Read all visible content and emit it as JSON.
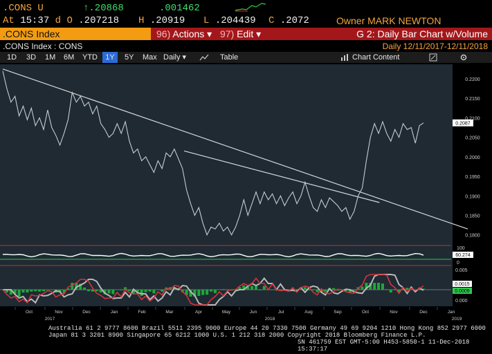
{
  "header": {
    "ticker": ".CONS U",
    "last_arrow": "↑",
    "last": ".20868",
    "change": ".001462",
    "at_label": "At",
    "time": "15:37",
    "d_label": "d",
    "open_label": "O",
    "open": ".207218",
    "high_label": "H",
    "high": ".20919",
    "low_label": "L",
    "low": ".204439",
    "close_label": "C",
    "close": ".2072",
    "owner": "Owner MARK NEWTON"
  },
  "menubar": {
    "index_name": ".CONS Index",
    "actions_num": "96)",
    "actions_label": "Actions ▾",
    "edit_num": "97)",
    "edit_label": "Edit ▾",
    "chart_title": "G 2: Daily Bar Chart w/Volume"
  },
  "subbar": {
    "left": ".CONS Index : CONS",
    "freq": "Daily",
    "range": "12/11/2017-12/11/2018"
  },
  "toolbar": {
    "ranges": [
      "1D",
      "3D",
      "1M",
      "6M",
      "YTD",
      "1Y",
      "5Y",
      "Max"
    ],
    "active_range": "1Y",
    "period": "Daily ▾",
    "table_label": "Table",
    "chart_content_label": "Chart Content"
  },
  "chart_data": {
    "type": "line",
    "ylim": [
      0.178,
      0.223
    ],
    "y_ticks": [
      "0.2200",
      "0.2150",
      "0.2100",
      "0.2050",
      "0.2000",
      "0.1950",
      "0.1900",
      "0.1850",
      "0.1800"
    ],
    "last_value_label": "0.2087",
    "x_months": [
      "Oct",
      "Nov",
      "Dec",
      "Jan",
      "Feb",
      "Mar",
      "Apr",
      "May",
      "Jun",
      "Jul",
      "Aug",
      "Sep",
      "Oct",
      "Nov",
      "Dec",
      "Jan"
    ],
    "x_years": [
      "2017",
      "2018",
      "2019"
    ],
    "series_values": [
      0.222,
      0.2175,
      0.214,
      0.2155,
      0.2105,
      0.213,
      0.2095,
      0.2125,
      0.208,
      0.21,
      0.207,
      0.212,
      0.2075,
      0.2055,
      0.203,
      0.206,
      0.2095,
      0.2165,
      0.214,
      0.2155,
      0.213,
      0.214,
      0.211,
      0.213,
      0.2085,
      0.207,
      0.205,
      0.206,
      0.2085,
      0.206,
      0.209,
      0.204,
      0.201,
      0.202,
      0.199,
      0.2,
      0.198,
      0.196,
      0.199,
      0.197,
      0.201,
      0.2,
      0.202,
      0.1995,
      0.197,
      0.1915,
      0.188,
      0.185,
      0.187,
      0.183,
      0.18,
      0.182,
      0.1815,
      0.183,
      0.181,
      0.182,
      0.18,
      0.182,
      0.185,
      0.189,
      0.185,
      0.188,
      0.191,
      0.188,
      0.191,
      0.189,
      0.1905,
      0.188,
      0.19,
      0.1875,
      0.1895,
      0.191,
      0.188,
      0.19,
      0.1935,
      0.19,
      0.187,
      0.186,
      0.189,
      0.187,
      0.1895,
      0.1885,
      0.1875,
      0.186,
      0.187,
      0.184,
      0.186,
      0.19,
      0.192,
      0.199,
      0.205,
      0.2085,
      0.206,
      0.209,
      0.206,
      0.204,
      0.207,
      0.205,
      0.2085,
      0.207,
      0.2075,
      0.2035,
      0.208,
      0.2087
    ],
    "trendlines": [
      {
        "from": [
          0,
          0.2225
        ],
        "to": [
          1,
          0.1815
        ]
      },
      {
        "from": [
          0.39,
          0.2015
        ],
        "to": [
          0.81,
          0.1883
        ]
      }
    ],
    "indicator1": {
      "ticks": [
        "100",
        "0"
      ],
      "value_label": "60.274"
    },
    "indicator2": {
      "ticks": [
        "0.005",
        "0.000"
      ],
      "value_label": "0.0015",
      "value_label2": "0.0009"
    }
  },
  "footer": {
    "line1": "Australia 61 2 9777 8600  Brazil 5511 2395 9000  Europe 44 20 7330 7500  Germany 49 69 9204 1210  Hong Kong 852 2977 6000",
    "line2": "Japan 81 3 3201 8900        Singapore 65 6212 1000        U.S. 1 212 318 2000        Copyright 2018 Bloomberg Finance L.P.",
    "line3": "SN 461759 EST  GMT-5:00 H453-5850-1 11-Dec-2018 15:37:17"
  },
  "colors": {
    "amber": "#f4a53b",
    "green": "#3ee06a",
    "red_bar": "#a3171b",
    "orange_bar": "#f39c12",
    "chart_bg": "#1f2a33",
    "active_button": "#2b6cd6"
  }
}
